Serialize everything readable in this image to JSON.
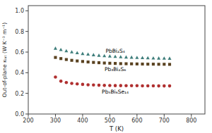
{
  "chart_data": {
    "type": "scatter",
    "xlabel": "T (K)",
    "ylabel": "Out-of-plane κₗₐₜ (W K⁻¹ m⁻¹)",
    "xlim": [
      200,
      850
    ],
    "ylim": [
      0.0,
      1.05
    ],
    "xticks": [
      200,
      300,
      400,
      500,
      600,
      700,
      800
    ],
    "yticks": [
      {
        "value": 0.0,
        "label": "0.0"
      },
      0.2,
      0.4,
      0.6,
      0.8,
      {
        "value": 1.0,
        "label": "1.0"
      }
    ],
    "grid": false,
    "annotations": [
      "PbBi₂S₄",
      "Pb₃Bi₂S₆",
      "Pb₅Bi₆Se₁₄"
    ],
    "series": [
      {
        "color": "#3d7d7a",
        "marker": "triangle",
        "x": [
          300,
          320,
          340,
          360,
          380,
          400,
          420,
          440,
          460,
          480,
          500,
          520,
          540,
          560,
          580,
          600,
          620,
          640,
          660,
          680,
          700,
          720
        ],
        "values": [
          0.635,
          0.622,
          0.61,
          0.6,
          0.592,
          0.584,
          0.578,
          0.572,
          0.567,
          0.563,
          0.559,
          0.556,
          0.553,
          0.55,
          0.548,
          0.546,
          0.544,
          0.542,
          0.541,
          0.54,
          0.539,
          0.538
        ]
      },
      {
        "color": "#5a4220",
        "marker": "square",
        "x": [
          300,
          320,
          340,
          360,
          380,
          400,
          420,
          440,
          460,
          480,
          500,
          520,
          540,
          560,
          580,
          600,
          620,
          640,
          660,
          680,
          700,
          720
        ],
        "values": [
          0.548,
          0.537,
          0.528,
          0.52,
          0.514,
          0.509,
          0.504,
          0.5,
          0.497,
          0.494,
          0.492,
          0.49,
          0.488,
          0.487,
          0.486,
          0.485,
          0.484,
          0.483,
          0.483,
          0.482,
          0.482,
          0.481
        ]
      },
      {
        "color": "#b03030",
        "marker": "circle",
        "x": [
          300,
          320,
          340,
          360,
          380,
          400,
          420,
          440,
          460,
          480,
          500,
          520,
          540,
          560,
          580,
          600,
          620,
          640,
          660,
          680,
          700,
          720
        ],
        "values": [
          0.358,
          0.318,
          0.305,
          0.297,
          0.291,
          0.287,
          0.283,
          0.281,
          0.279,
          0.277,
          0.276,
          0.275,
          0.275,
          0.274,
          0.274,
          0.274,
          0.273,
          0.273,
          0.273,
          0.272,
          0.272,
          0.272
        ]
      }
    ]
  }
}
